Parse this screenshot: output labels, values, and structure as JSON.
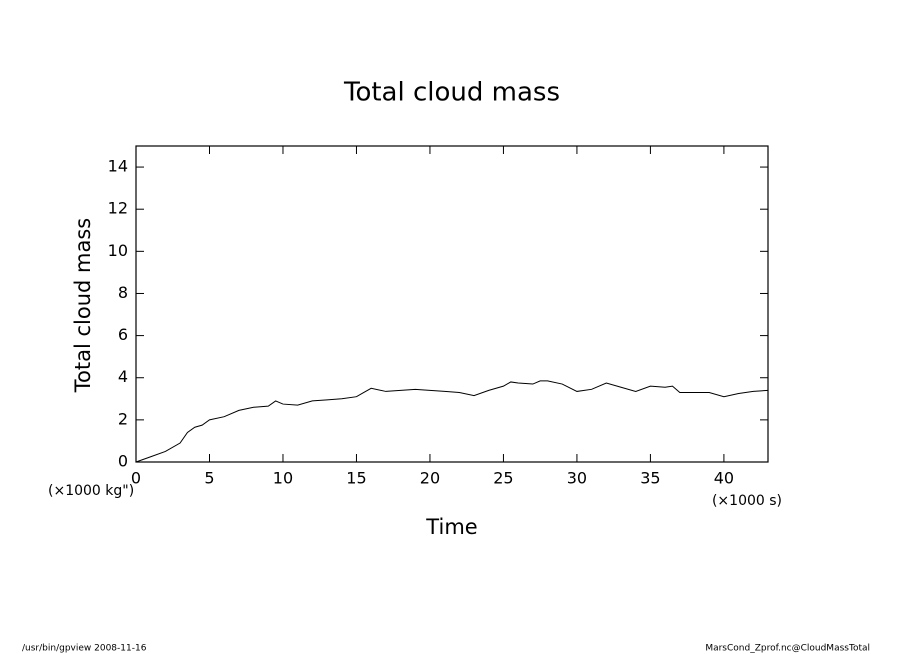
{
  "chart_data": {
    "type": "line",
    "title": "Total cloud mass",
    "x_label": "Time",
    "y_label": "Total cloud mass",
    "x_unit": "(×1000 s)",
    "y_unit": "(×1000 kg\")",
    "footer_left": "/usr/bin/gpview  2008-11-16",
    "footer_right": "MarsCond_Zprof.nc@CloudMassTotal",
    "xlim": [
      0,
      43
    ],
    "ylim": [
      0,
      15
    ],
    "xticks": [
      0,
      5,
      10,
      15,
      20,
      25,
      30,
      35,
      40
    ],
    "yticks": [
      0,
      2,
      4,
      6,
      8,
      10,
      12,
      14
    ],
    "x": [
      0,
      1,
      2,
      3,
      3.5,
      4,
      4.5,
      5,
      6,
      7,
      8,
      9,
      9.5,
      10,
      11,
      12,
      13,
      14,
      15,
      15.5,
      16,
      17,
      18,
      19,
      20,
      21,
      22,
      23,
      24,
      25,
      25.5,
      26,
      27,
      27.5,
      28,
      29,
      30,
      31,
      32,
      33,
      34,
      35,
      36,
      36.5,
      37,
      38,
      39,
      40,
      41,
      42,
      43
    ],
    "series": [
      {
        "color": "#000000",
        "values": [
          0,
          0.25,
          0.5,
          0.9,
          1.4,
          1.65,
          1.75,
          2.0,
          2.15,
          2.45,
          2.6,
          2.65,
          2.9,
          2.75,
          2.7,
          2.9,
          2.95,
          3.0,
          3.1,
          3.3,
          3.5,
          3.35,
          3.4,
          3.45,
          3.4,
          3.35,
          3.3,
          3.15,
          3.4,
          3.6,
          3.8,
          3.75,
          3.7,
          3.85,
          3.85,
          3.7,
          3.35,
          3.45,
          3.75,
          3.55,
          3.35,
          3.6,
          3.55,
          3.6,
          3.3,
          3.3,
          3.3,
          3.1,
          3.25,
          3.35,
          3.4
        ]
      }
    ]
  }
}
